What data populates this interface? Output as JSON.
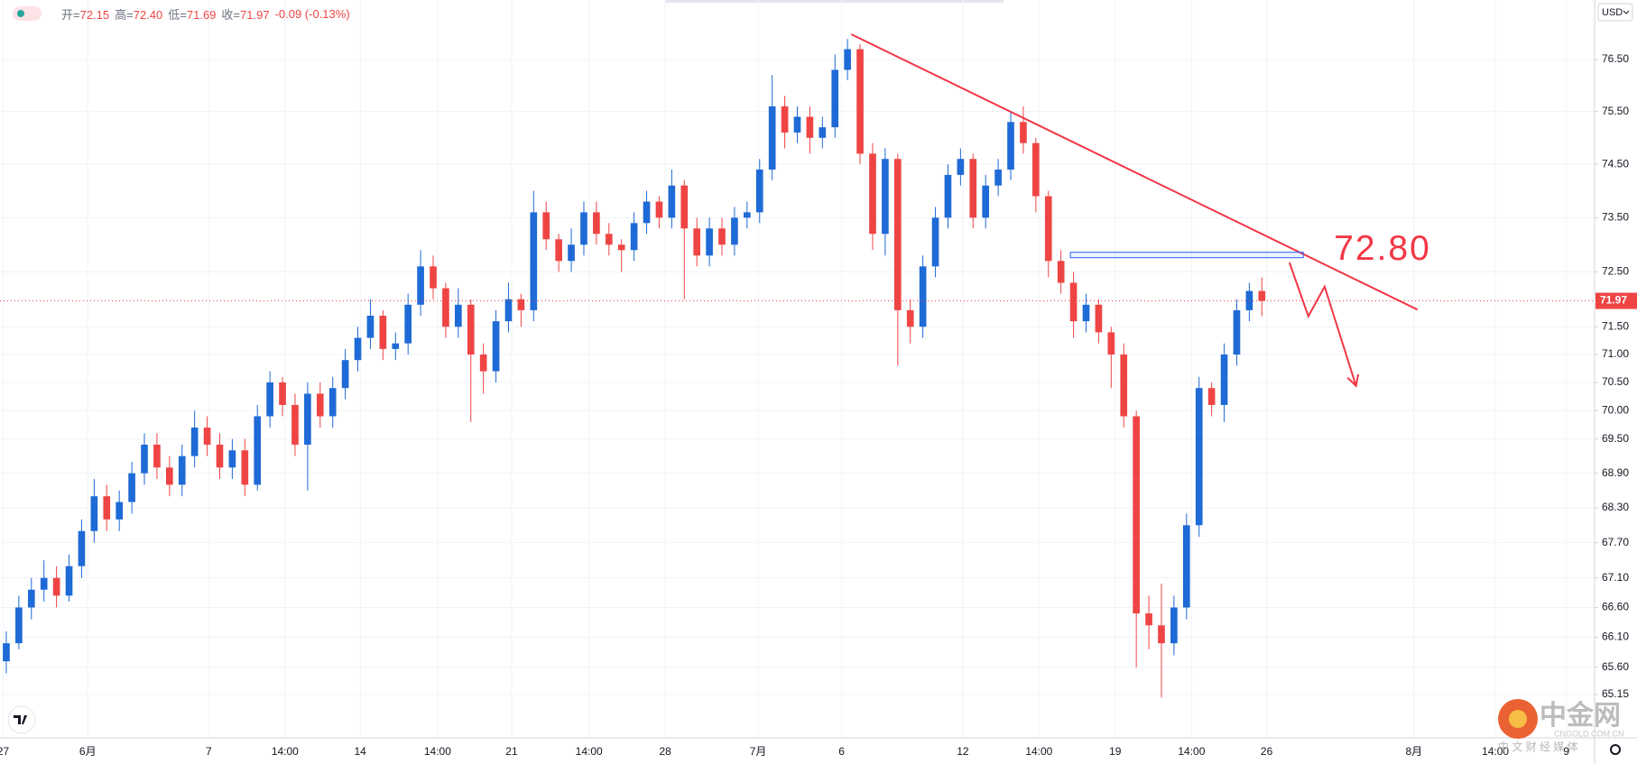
{
  "chart_data": {
    "type": "candlestick",
    "log_scale": true,
    "grid": true,
    "xlim": [
      -0.5,
      126.5
    ],
    "ylim": [
      64.44,
      77.66
    ],
    "xticks": [
      {
        "value": -0.25,
        "label": "27"
      },
      {
        "value": 6.49,
        "label": "6月"
      },
      {
        "value": 16.13,
        "label": "7"
      },
      {
        "value": 22.2,
        "label": "14:00"
      },
      {
        "value": 28.19,
        "label": "14"
      },
      {
        "value": 34.35,
        "label": "14:00"
      },
      {
        "value": 40.25,
        "label": "21"
      },
      {
        "value": 46.41,
        "label": "14:00"
      },
      {
        "value": 52.48,
        "label": "28"
      },
      {
        "value": 59.88,
        "label": "7月"
      },
      {
        "value": 66.53,
        "label": "6"
      },
      {
        "value": 76.18,
        "label": "12"
      },
      {
        "value": 82.25,
        "label": "14:00"
      },
      {
        "value": 88.32,
        "label": "19"
      },
      {
        "value": 94.4,
        "label": "14:00"
      },
      {
        "value": 100.38,
        "label": "26"
      },
      {
        "value": 112.11,
        "label": "8月"
      },
      {
        "value": 118.6,
        "label": "14:00"
      },
      {
        "value": 124.25,
        "label": "9"
      }
    ],
    "yticks": [
      65.15,
      {
        "value": 65.6,
        "label": "65.60"
      },
      {
        "value": 66.1,
        "label": "66.10"
      },
      {
        "value": 66.6,
        "label": "66.60"
      },
      {
        "value": 67.1,
        "label": "67.10"
      },
      {
        "value": 67.7,
        "label": "67.70"
      },
      {
        "value": 68.3,
        "label": "68.30"
      },
      {
        "value": 68.9,
        "label": "68.90"
      },
      {
        "value": 69.5,
        "label": "69.50"
      },
      {
        "value": 70,
        "label": "70.00"
      },
      {
        "value": 70.5,
        "label": "70.50"
      },
      {
        "value": 71,
        "label": "71.00"
      },
      {
        "value": 71.5,
        "label": "71.50"
      },
      {
        "value": 72.5,
        "label": "72.50"
      },
      {
        "value": 73.5,
        "label": "73.50"
      },
      {
        "value": 74.5,
        "label": "74.50"
      },
      {
        "value": 75.5,
        "label": "75.50"
      },
      {
        "value": 76.5,
        "label": "76.50"
      }
    ],
    "header": [
      {
        "label": "开=",
        "value": "72.15"
      },
      {
        "label": "高=",
        "value": "72.40"
      },
      {
        "label": "低=",
        "value": "71.69"
      },
      {
        "label": "收=",
        "value": "71.97"
      },
      {
        "label": "",
        "value": "-0.09 (-0.13%)"
      }
    ],
    "currency": "USD",
    "x": [
      0,
      1,
      2,
      3,
      4,
      5,
      6,
      7,
      8,
      9,
      10,
      11,
      12,
      13,
      14,
      15,
      16,
      17,
      18,
      19,
      20,
      21,
      22,
      23,
      24,
      25,
      26,
      27,
      28,
      29,
      30,
      31,
      32,
      33,
      34,
      35,
      36,
      37,
      38,
      39,
      40,
      41,
      42,
      43,
      44,
      45,
      46,
      47,
      48,
      49,
      50,
      51,
      52,
      53,
      54,
      55,
      56,
      57,
      58,
      59,
      60,
      61,
      62,
      63,
      64,
      65,
      66,
      67,
      68,
      69,
      70,
      71,
      72,
      73,
      74,
      75,
      76,
      77,
      78,
      79,
      80,
      81,
      82,
      83,
      84,
      85,
      86,
      87,
      88,
      89,
      90,
      91,
      92,
      93,
      94,
      95,
      96,
      97,
      98,
      99,
      100
    ],
    "series": [
      {
        "up_color": "#1e6ad6",
        "down_color": "#ef4444",
        "open": [
          65.7,
          66.0,
          66.6,
          66.9,
          67.1,
          66.8,
          67.3,
          67.9,
          68.5,
          68.1,
          68.4,
          68.9,
          69.4,
          69.0,
          68.7,
          69.2,
          69.7,
          69.4,
          69.0,
          69.3,
          68.7,
          69.9,
          70.5,
          70.1,
          69.4,
          70.3,
          69.9,
          70.4,
          70.9,
          71.3,
          71.7,
          71.1,
          71.2,
          71.9,
          72.6,
          72.2,
          71.5,
          71.9,
          71.0,
          70.7,
          71.6,
          72.0,
          71.8,
          73.6,
          73.1,
          72.7,
          73.0,
          73.6,
          73.2,
          73.0,
          72.9,
          73.4,
          73.8,
          73.5,
          74.1,
          73.3,
          72.8,
          73.3,
          73.0,
          73.5,
          73.6,
          74.4,
          75.6,
          75.1,
          75.4,
          75.0,
          75.2,
          76.3,
          76.7,
          74.7,
          73.2,
          74.6,
          71.8,
          71.5,
          72.6,
          73.5,
          74.3,
          74.6,
          73.5,
          74.1,
          74.4,
          75.3,
          74.9,
          73.9,
          72.7,
          72.3,
          71.6,
          71.9,
          71.4,
          71.0,
          69.9,
          66.5,
          66.3,
          66.0,
          66.6,
          68.0,
          70.4,
          70.1,
          71.0,
          71.8,
          72.15
        ],
        "high": [
          66.2,
          66.8,
          67.1,
          67.4,
          67.3,
          67.5,
          68.1,
          68.8,
          68.7,
          68.6,
          69.1,
          69.6,
          69.6,
          69.2,
          69.4,
          70.0,
          69.9,
          69.6,
          69.5,
          69.5,
          70.1,
          70.7,
          70.6,
          70.3,
          70.5,
          70.5,
          70.6,
          71.1,
          71.5,
          72.0,
          71.8,
          71.4,
          72.1,
          72.9,
          72.8,
          72.3,
          72.2,
          72.0,
          71.2,
          71.8,
          72.3,
          72.1,
          74.0,
          73.8,
          73.2,
          73.3,
          73.8,
          73.8,
          73.4,
          73.1,
          73.6,
          74.0,
          73.9,
          74.4,
          74.2,
          73.5,
          73.5,
          73.5,
          73.7,
          73.8,
          74.6,
          76.2,
          75.8,
          75.6,
          75.6,
          75.4,
          76.6,
          76.9,
          76.8,
          74.9,
          74.8,
          74.7,
          72.0,
          72.8,
          73.7,
          74.5,
          74.8,
          74.7,
          74.3,
          74.6,
          75.5,
          75.6,
          75.0,
          74.0,
          72.9,
          72.5,
          72.1,
          72.0,
          71.5,
          71.2,
          70.0,
          66.8,
          67.0,
          66.8,
          68.2,
          70.6,
          70.5,
          71.2,
          72.0,
          72.3,
          72.4
        ],
        "low": [
          65.5,
          65.9,
          66.4,
          66.7,
          66.6,
          66.7,
          67.1,
          67.7,
          67.9,
          67.9,
          68.2,
          68.7,
          68.8,
          68.5,
          68.5,
          69.0,
          69.2,
          68.8,
          68.8,
          68.5,
          68.6,
          69.7,
          69.9,
          69.2,
          68.6,
          69.7,
          69.7,
          70.2,
          70.7,
          71.1,
          70.9,
          70.9,
          71.0,
          71.7,
          72.0,
          71.3,
          71.3,
          69.8,
          70.3,
          70.5,
          71.4,
          71.5,
          71.6,
          72.9,
          72.5,
          72.5,
          72.8,
          73.0,
          72.8,
          72.5,
          72.7,
          73.2,
          73.3,
          73.3,
          72.0,
          72.6,
          72.6,
          72.8,
          72.8,
          73.3,
          73.4,
          74.2,
          74.8,
          74.9,
          74.7,
          74.8,
          75.0,
          76.1,
          74.5,
          72.9,
          72.8,
          70.8,
          71.2,
          71.3,
          72.4,
          73.3,
          74.1,
          73.3,
          73.3,
          73.9,
          74.2,
          74.7,
          73.6,
          72.4,
          72.1,
          71.3,
          71.4,
          71.2,
          70.4,
          69.7,
          65.6,
          65.9,
          65.1,
          65.8,
          66.4,
          67.8,
          69.9,
          69.8,
          70.8,
          71.6,
          71.69
        ],
        "close": [
          66.0,
          66.6,
          66.9,
          67.1,
          66.8,
          67.3,
          67.9,
          68.5,
          68.1,
          68.4,
          68.9,
          69.4,
          69.0,
          68.7,
          69.2,
          69.7,
          69.4,
          69.0,
          69.3,
          68.7,
          69.9,
          70.5,
          70.1,
          69.4,
          70.3,
          69.9,
          70.4,
          70.9,
          71.3,
          71.7,
          71.1,
          71.2,
          71.9,
          72.6,
          72.2,
          71.5,
          71.9,
          71.0,
          70.7,
          71.6,
          72.0,
          71.8,
          73.6,
          73.1,
          72.7,
          73.0,
          73.6,
          73.2,
          73.0,
          72.9,
          73.4,
          73.8,
          73.5,
          74.1,
          73.3,
          72.8,
          73.3,
          73.0,
          73.5,
          73.6,
          74.4,
          75.6,
          75.1,
          75.4,
          75.0,
          75.2,
          76.3,
          76.7,
          74.7,
          73.2,
          74.6,
          71.8,
          71.5,
          72.6,
          73.5,
          74.3,
          74.6,
          73.5,
          74.1,
          74.4,
          75.3,
          74.9,
          73.9,
          72.7,
          72.3,
          71.6,
          71.9,
          71.4,
          71.0,
          69.9,
          66.5,
          66.3,
          66.0,
          66.6,
          68.0,
          70.4,
          70.1,
          71.0,
          71.8,
          72.15,
          71.97
        ]
      }
    ],
    "annotations": {
      "color": "#f23645",
      "trendline": {
        "x": [
          67.3,
          112.4
        ],
        "y": [
          76.99,
          71.81
        ]
      },
      "band": {
        "x": [
          84.75,
          103.3
        ],
        "y": [
          72.76,
          72.86
        ],
        "color": "#2962ff"
      },
      "arrow": {
        "x": [
          102.2,
          103.7,
          105.0,
          107.5
        ],
        "y": [
          72.67,
          71.69,
          72.23,
          70.44
        ]
      },
      "label": "72.80"
    }
  },
  "watermark": {
    "name": "中金网",
    "domain": "CNGOLD.COM.CN",
    "slogan": "中 文 财 经 媒 体"
  }
}
